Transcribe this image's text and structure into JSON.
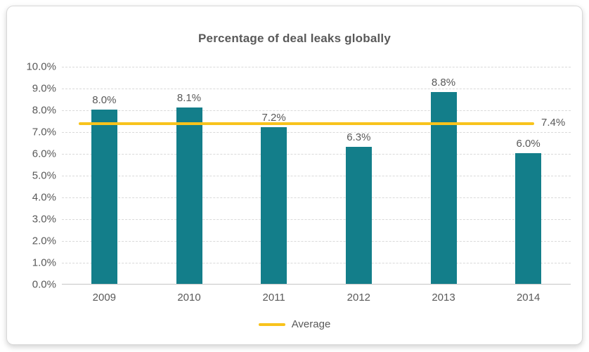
{
  "chart_data": {
    "type": "bar",
    "title": "Percentage of deal leaks globally",
    "categories": [
      "2009",
      "2010",
      "2011",
      "2012",
      "2013",
      "2014"
    ],
    "values": [
      8.0,
      8.1,
      7.2,
      6.3,
      8.8,
      6.0
    ],
    "value_labels": [
      "8.0%",
      "8.1%",
      "7.2%",
      "6.3%",
      "8.8%",
      "6.0%"
    ],
    "average": {
      "value": 7.4,
      "label": "7.4%",
      "legend_label": "Average"
    },
    "ylim": [
      0,
      10
    ],
    "ytick_step": 1,
    "ytick_labels": [
      "0.0%",
      "1.0%",
      "2.0%",
      "3.0%",
      "4.0%",
      "5.0%",
      "6.0%",
      "7.0%",
      "8.0%",
      "9.0%",
      "10.0%"
    ],
    "grid": "horizontal-dashed",
    "legend_position": "bottom",
    "bar_color": "#137E8A",
    "average_line_color": "#F8C31C",
    "text_color": "#595959"
  }
}
